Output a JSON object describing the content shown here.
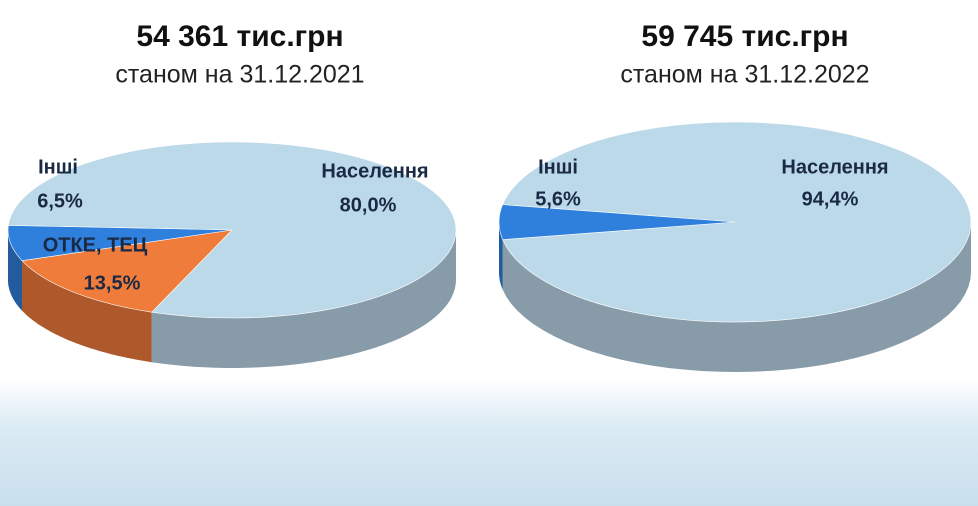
{
  "chart_data": [
    {
      "type": "pie",
      "title": "54 361 тис.грн",
      "subtitle": "станом на 31.12.2021",
      "categories": [
        "Населення",
        "ОТКЕ, ТЕЦ",
        "Інші"
      ],
      "values": [
        80.0,
        13.5,
        6.5
      ],
      "value_labels": [
        "80,0%",
        "13,5%",
        "6,5%"
      ],
      "colors": [
        "#bcd9ea",
        "#f07c3c",
        "#2f7fdc"
      ]
    },
    {
      "type": "pie",
      "title": "59 745 тис.грн",
      "subtitle": "станом на 31.12.2022",
      "categories": [
        "Населення",
        "Інші"
      ],
      "values": [
        94.4,
        5.6
      ],
      "value_labels": [
        "94,4%",
        "5,6%"
      ],
      "colors": [
        "#bcd9ea",
        "#2f7fdc"
      ]
    }
  ]
}
